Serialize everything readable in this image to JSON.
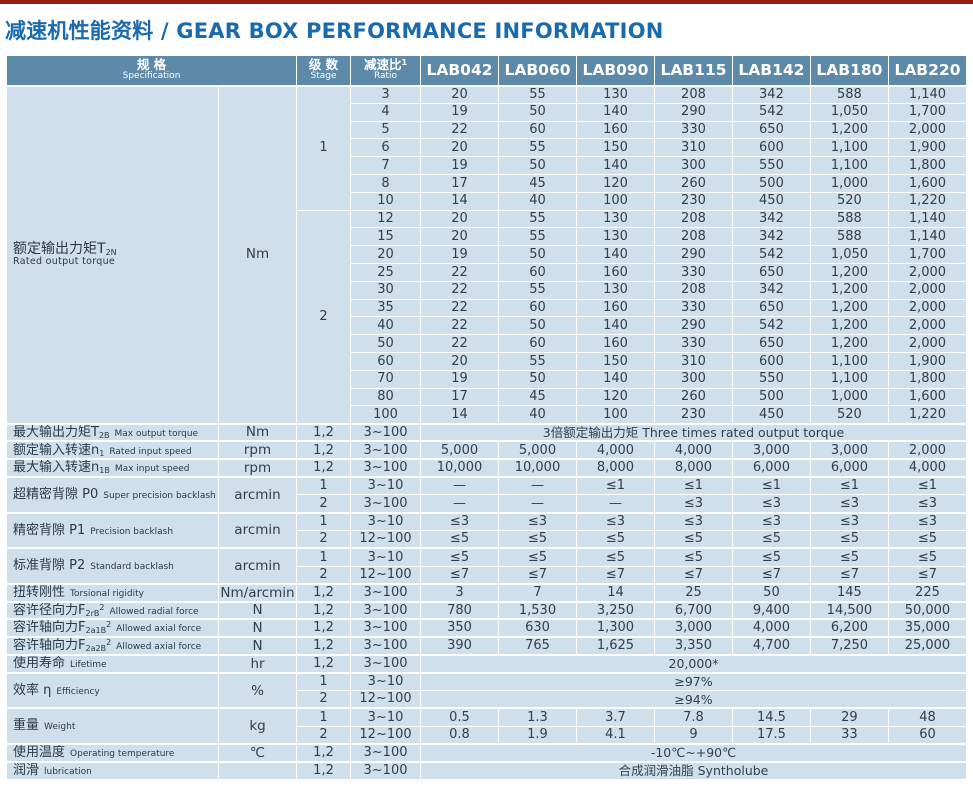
{
  "page": {
    "title": "减速机性能资料 / GEAR BOX PERFORMANCE INFORMATION"
  },
  "colors": {
    "top_line_red": "#941c10",
    "title_blue": "#1a6bae",
    "header_bg": "#5e8aa9",
    "cell_bg": "#cfdfeb",
    "text": "#333f4a"
  },
  "table": {
    "header": {
      "spec_zh": "规 格",
      "spec_en": "Specification",
      "stage_zh": "级 数",
      "stage_en": "Stage",
      "ratio_zh": "减速比",
      "ratio_sup": "1",
      "ratio_en": "Ratio",
      "models": [
        "LAB042",
        "LAB060",
        "LAB090",
        "LAB115",
        "LAB142",
        "LAB180",
        "LAB220"
      ]
    },
    "groups": [
      {
        "id": "rated-output-torque",
        "label": {
          "zh": "额定输出力矩T",
          "sub": "2N",
          "en": "Rated output torque",
          "stacked": true
        },
        "unit": "Nm",
        "rows": [
          {
            "stage": "1",
            "stage_rows": 7,
            "ratio": "3",
            "values": [
              "20",
              "55",
              "130",
              "208",
              "342",
              "588",
              "1,140"
            ]
          },
          {
            "ratio": "4",
            "values": [
              "19",
              "50",
              "140",
              "290",
              "542",
              "1,050",
              "1,700"
            ]
          },
          {
            "ratio": "5",
            "values": [
              "22",
              "60",
              "160",
              "330",
              "650",
              "1,200",
              "2,000"
            ]
          },
          {
            "ratio": "6",
            "values": [
              "20",
              "55",
              "150",
              "310",
              "600",
              "1,100",
              "1,900"
            ]
          },
          {
            "ratio": "7",
            "values": [
              "19",
              "50",
              "140",
              "300",
              "550",
              "1,100",
              "1,800"
            ]
          },
          {
            "ratio": "8",
            "values": [
              "17",
              "45",
              "120",
              "260",
              "500",
              "1,000",
              "1,600"
            ]
          },
          {
            "ratio": "10",
            "values": [
              "14",
              "40",
              "100",
              "230",
              "450",
              "520",
              "1,220"
            ]
          },
          {
            "stage": "2",
            "stage_rows": 12,
            "ratio": "12",
            "values": [
              "20",
              "55",
              "130",
              "208",
              "342",
              "588",
              "1,140"
            ]
          },
          {
            "ratio": "15",
            "values": [
              "20",
              "55",
              "130",
              "208",
              "342",
              "588",
              "1,140"
            ]
          },
          {
            "ratio": "20",
            "values": [
              "19",
              "50",
              "140",
              "290",
              "542",
              "1,050",
              "1,700"
            ]
          },
          {
            "ratio": "25",
            "values": [
              "22",
              "60",
              "160",
              "330",
              "650",
              "1,200",
              "2,000"
            ]
          },
          {
            "ratio": "30",
            "values": [
              "22",
              "55",
              "130",
              "208",
              "342",
              "1,200",
              "2,000"
            ]
          },
          {
            "ratio": "35",
            "values": [
              "22",
              "60",
              "160",
              "330",
              "650",
              "1,200",
              "2,000"
            ]
          },
          {
            "ratio": "40",
            "values": [
              "22",
              "50",
              "140",
              "290",
              "542",
              "1,200",
              "2,000"
            ]
          },
          {
            "ratio": "50",
            "values": [
              "22",
              "60",
              "160",
              "330",
              "650",
              "1,200",
              "2,000"
            ]
          },
          {
            "ratio": "60",
            "values": [
              "20",
              "55",
              "150",
              "310",
              "600",
              "1,100",
              "1,900"
            ]
          },
          {
            "ratio": "70",
            "values": [
              "19",
              "50",
              "140",
              "300",
              "550",
              "1,100",
              "1,800"
            ]
          },
          {
            "ratio": "80",
            "values": [
              "17",
              "45",
              "120",
              "260",
              "500",
              "1,000",
              "1,600"
            ]
          },
          {
            "ratio": "100",
            "values": [
              "14",
              "40",
              "100",
              "230",
              "450",
              "520",
              "1,220"
            ]
          }
        ]
      },
      {
        "id": "max-output-torque",
        "label": {
          "zh": "最大输出力矩T",
          "sub": "2B",
          "en": "Max output torque"
        },
        "unit": "Nm",
        "rows": [
          {
            "stage": "1,2",
            "ratio": "3~100",
            "span": "3倍额定输出力矩 Three times rated output torque"
          }
        ]
      },
      {
        "id": "rated-input-speed",
        "label": {
          "zh": "额定输入转速n",
          "sub": "1",
          "en": "Rated input speed"
        },
        "unit": "rpm",
        "rows": [
          {
            "stage": "1,2",
            "ratio": "3~100",
            "values": [
              "5,000",
              "5,000",
              "4,000",
              "4,000",
              "3,000",
              "3,000",
              "2,000"
            ]
          }
        ]
      },
      {
        "id": "max-input-speed",
        "label": {
          "zh": "最大输入转速n",
          "sub": "1B",
          "en": "Max input speed"
        },
        "unit": "rpm",
        "rows": [
          {
            "stage": "1,2",
            "ratio": "3~100",
            "values": [
              "10,000",
              "10,000",
              "8,000",
              "8,000",
              "6,000",
              "6,000",
              "4,000"
            ]
          }
        ]
      },
      {
        "id": "p0-backlash",
        "label": {
          "zh": "超精密背隙 P0",
          "en": "Super precision backlash"
        },
        "unit": "arcmin",
        "rows": [
          {
            "stage": "1",
            "ratio": "3~10",
            "values": [
              "—",
              "—",
              "≤1",
              "≤1",
              "≤1",
              "≤1",
              "≤1"
            ]
          },
          {
            "stage": "2",
            "ratio": "3~100",
            "values": [
              "—",
              "—",
              "—",
              "≤3",
              "≤3",
              "≤3",
              "≤3"
            ]
          }
        ]
      },
      {
        "id": "p1-backlash",
        "label": {
          "zh": "精密背隙 P1",
          "en": "Precision backlash"
        },
        "unit": "arcmin",
        "rows": [
          {
            "stage": "1",
            "ratio": "3~10",
            "values": [
              "≤3",
              "≤3",
              "≤3",
              "≤3",
              "≤3",
              "≤3",
              "≤3"
            ]
          },
          {
            "stage": "2",
            "ratio": "12~100",
            "values": [
              "≤5",
              "≤5",
              "≤5",
              "≤5",
              "≤5",
              "≤5",
              "≤5"
            ]
          }
        ]
      },
      {
        "id": "p2-backlash",
        "label": {
          "zh": "标准背隙 P2",
          "en": "Standard backlash"
        },
        "unit": "arcmin",
        "rows": [
          {
            "stage": "1",
            "ratio": "3~10",
            "values": [
              "≤5",
              "≤5",
              "≤5",
              "≤5",
              "≤5",
              "≤5",
              "≤5"
            ]
          },
          {
            "stage": "2",
            "ratio": "12~100",
            "values": [
              "≤7",
              "≤7",
              "≤7",
              "≤7",
              "≤7",
              "≤7",
              "≤7"
            ]
          }
        ]
      },
      {
        "id": "torsional-rigidity",
        "label": {
          "zh": "扭转刚性",
          "en": "Torsional rigidity"
        },
        "unit": "Nm/arcmin",
        "rows": [
          {
            "stage": "1,2",
            "ratio": "3~100",
            "values": [
              "3",
              "7",
              "14",
              "25",
              "50",
              "145",
              "225"
            ]
          }
        ]
      },
      {
        "id": "allowed-radial-force",
        "label": {
          "zh": "容许径向力F",
          "sub": "2rB",
          "sup": "2",
          "en": "Allowed radial force"
        },
        "unit": "N",
        "rows": [
          {
            "stage": "1,2",
            "ratio": "3~100",
            "values": [
              "780",
              "1,530",
              "3,250",
              "6,700",
              "9,400",
              "14,500",
              "50,000"
            ]
          }
        ]
      },
      {
        "id": "allowed-axial-force-1",
        "label": {
          "zh": "容许轴向力F",
          "sub": "2a1B",
          "sup": "2",
          "en": "Allowed axial force"
        },
        "unit": "N",
        "rows": [
          {
            "stage": "1,2",
            "ratio": "3~100",
            "values": [
              "350",
              "630",
              "1,300",
              "3,000",
              "4,000",
              "6,200",
              "35,000"
            ]
          }
        ]
      },
      {
        "id": "allowed-axial-force-2",
        "label": {
          "zh": "容许轴向力F",
          "sub": "2a2B",
          "sup": "2",
          "en": "Allowed axial force"
        },
        "unit": "N",
        "rows": [
          {
            "stage": "1,2",
            "ratio": "3~100",
            "values": [
              "390",
              "765",
              "1,625",
              "3,350",
              "4,700",
              "7,250",
              "25,000"
            ]
          }
        ]
      },
      {
        "id": "lifetime",
        "label": {
          "zh": "使用寿命",
          "en": "Lifetime"
        },
        "unit": "hr",
        "rows": [
          {
            "stage": "1,2",
            "ratio": "3~100",
            "span": "20,000*"
          }
        ]
      },
      {
        "id": "efficiency",
        "label": {
          "zh": "效率 η",
          "en": "Efficiency"
        },
        "unit": "%",
        "rows": [
          {
            "stage": "1",
            "ratio": "3~10",
            "span": "≥97%"
          },
          {
            "stage": "2",
            "ratio": "12~100",
            "span": "≥94%"
          }
        ]
      },
      {
        "id": "weight",
        "label": {
          "zh": "重量",
          "en": "Weight"
        },
        "unit": "kg",
        "rows": [
          {
            "stage": "1",
            "ratio": "3~10",
            "values": [
              "0.5",
              "1.3",
              "3.7",
              "7.8",
              "14.5",
              "29",
              "48"
            ]
          },
          {
            "stage": "2",
            "ratio": "12~100",
            "values": [
              "0.8",
              "1.9",
              "4.1",
              "9",
              "17.5",
              "33",
              "60"
            ]
          }
        ]
      },
      {
        "id": "operating-temperature",
        "label": {
          "zh": "使用温度",
          "en": "Operating temperature"
        },
        "unit": "℃",
        "rows": [
          {
            "stage": "1,2",
            "ratio": "3~100",
            "span": "-10℃~+90℃"
          }
        ]
      },
      {
        "id": "lubrication",
        "label": {
          "zh": "润滑",
          "en": "lubrication"
        },
        "unit": "",
        "rows": [
          {
            "stage": "1,2",
            "ratio": "3~100",
            "span": "合成润滑油脂 Syntholube"
          }
        ]
      }
    ]
  }
}
